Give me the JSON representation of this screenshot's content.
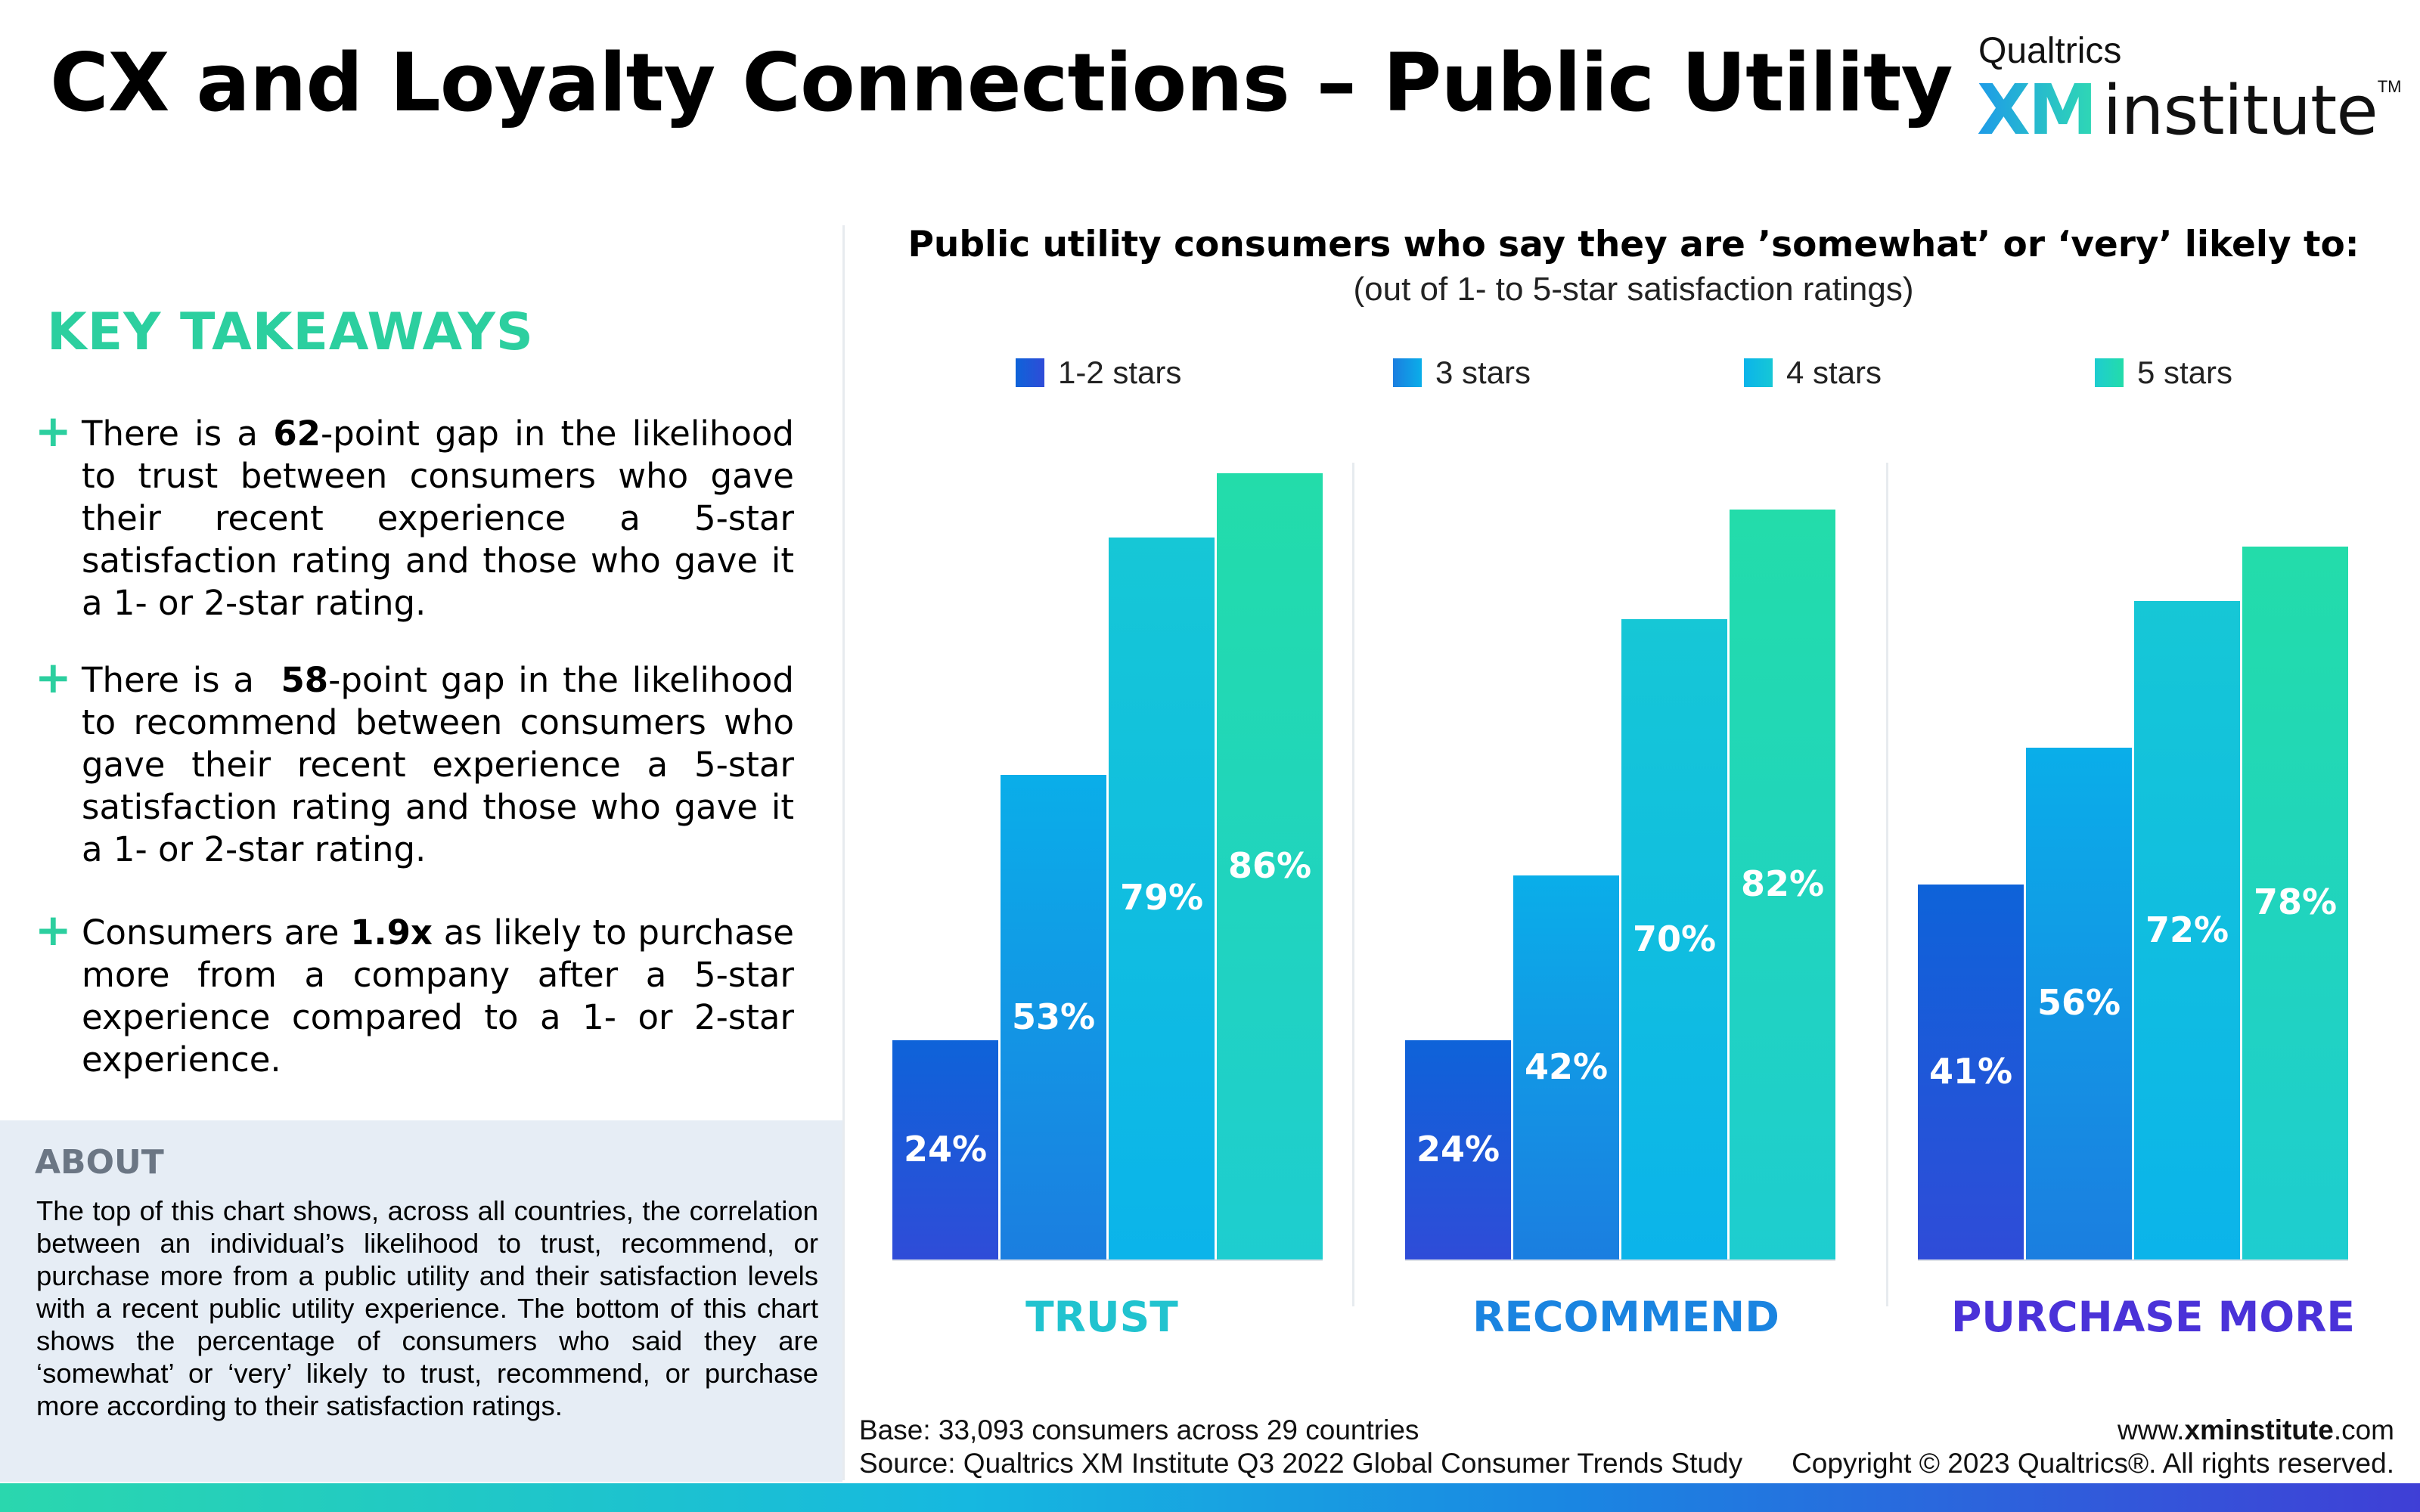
{
  "header": {
    "title": "CX and Loyalty Connections – Public Utility",
    "logo_top": "Qualtrics",
    "logo_xm": "XM",
    "logo_institute": "institute",
    "logo_tm": "TM"
  },
  "takeaways": {
    "heading": "KEY TAKEAWAYS",
    "bullet_symbol": "+",
    "items": [
      {
        "pre": "There is a ",
        "bold": "62",
        "post": "-point gap in the likelihood to trust between consumers who gave their recent experience a 5-star satisfaction rating and those who gave it a 1- or 2-star rating."
      },
      {
        "pre": "There is a  ",
        "bold": "58",
        "post": "-point gap in the likelihood to recommend between consumers who gave their recent experience a 5-star satisfaction rating and those who gave it a 1- or 2-star rating."
      },
      {
        "pre": "Consumers are ",
        "bold": "1.9x",
        "post": " as likely to purchase more from a company after a 5-star experience compared to a 1- or 2-star experience."
      }
    ]
  },
  "about": {
    "heading": "ABOUT",
    "body": "The top of this chart shows, across all countries, the correlation between an individual’s likelihood to trust, recommend, or purchase more from a public utility and their satisfaction levels with a recent public utility experience. The bottom of this chart shows the percentage of consumers who said they are ‘somewhat’ or ‘very’ likely to trust, recommend, or purchase more according to their satisfaction ratings."
  },
  "chart_data": {
    "type": "bar",
    "title": "Public utility consumers who say they are ’somewhat’ or ‘very’ likely to:",
    "subtitle": "(out of 1- to 5-star satisfaction ratings)",
    "categories": [
      "TRUST",
      "RECOMMEND",
      "PURCHASE MORE"
    ],
    "category_colors": [
      "#21c3cf",
      "#1a84e0",
      "#4a32d8"
    ],
    "series": [
      {
        "name": "1-2 stars",
        "values": [
          24,
          24,
          41
        ],
        "labels": [
          "24%",
          "24%",
          "41%"
        ],
        "color_top": "#0e63d9",
        "color_bottom": "#2f4cd8"
      },
      {
        "name": "3 stars",
        "values": [
          53,
          42,
          56
        ],
        "labels": [
          "53%",
          "42%",
          "56%"
        ],
        "color_top": "#0aaee9",
        "color_bottom": "#1b7ee0"
      },
      {
        "name": "4 stars",
        "values": [
          79,
          70,
          72
        ],
        "labels": [
          "79%",
          "70%",
          "72%"
        ],
        "color_top": "#16c7d6",
        "color_bottom": "#0bb4ea"
      },
      {
        "name": "5 stars",
        "values": [
          86,
          82,
          78
        ],
        "labels": [
          "86%",
          "82%",
          "78%"
        ],
        "color_top": "#23dcaa",
        "color_bottom": "#1ecdd0"
      }
    ],
    "ylim": [
      0,
      86
    ],
    "grid": false,
    "legend_position": "top"
  },
  "footer": {
    "base": "Base: 33,093 consumers across 29 countries",
    "source": "Source: Qualtrics XM Institute Q3 2022 Global Consumer Trends Study",
    "url_pre": "www.",
    "url_bold": "xminstitute",
    "url_post": ".com",
    "copyright": "Copyright © 2023 Qualtrics®. All rights reserved."
  }
}
